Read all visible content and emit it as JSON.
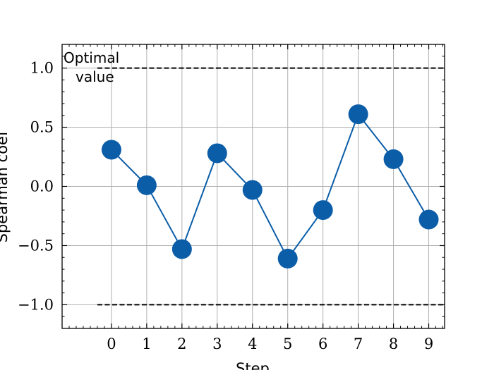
{
  "chart_data": {
    "type": "line",
    "xlabel": "Step",
    "ylabel": "Spearman coef",
    "x": [
      0,
      1,
      2,
      3,
      4,
      5,
      6,
      7,
      8,
      9
    ],
    "series": [
      {
        "values": [
          0.31,
          0.01,
          -0.53,
          0.28,
          -0.03,
          -0.61,
          -0.2,
          0.61,
          0.23,
          -0.28
        ]
      }
    ],
    "xticks": [
      "0",
      "1",
      "2",
      "3",
      "4",
      "5",
      "6",
      "7",
      "8",
      "9"
    ],
    "yticks": [
      "1.0",
      "0.5",
      "0.0",
      "−0.5",
      "−1.0"
    ],
    "ytick_values": [
      1.0,
      0.5,
      0.0,
      -0.5,
      -1.0
    ],
    "xlim": [
      -1.4,
      9.45
    ],
    "ylim": [
      -1.2,
      1.2
    ],
    "reference_lines": [
      1.0,
      -1.0
    ],
    "annotation": [
      "Optimal",
      "value"
    ],
    "grid": true,
    "series_color": "#0b5da8",
    "reference_color": "#000000",
    "grid_color": "#b0b0b0"
  }
}
